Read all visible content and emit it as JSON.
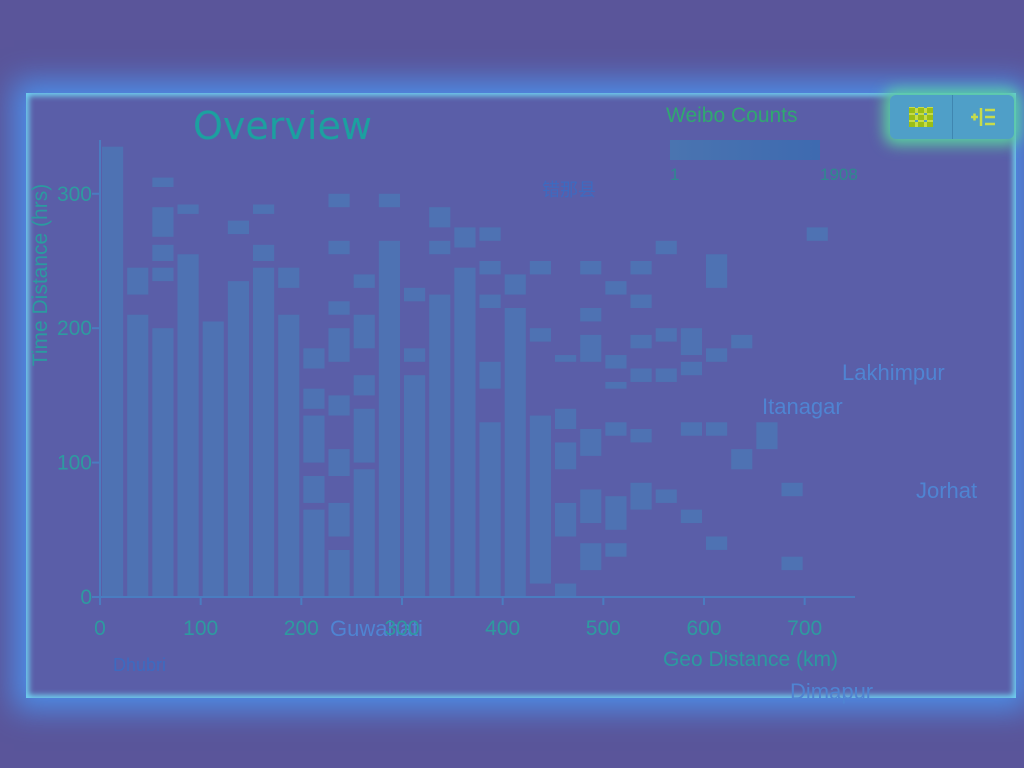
{
  "toolbar": {
    "items": [
      {
        "icon": "grid-icon",
        "label": ""
      },
      {
        "icon": "indent-list-icon",
        "label": ""
      }
    ]
  },
  "legend": {
    "title": "Weibo Counts",
    "min_label": "1",
    "max_label": "1908",
    "color": "#4a74b0"
  },
  "map_labels": [
    "Lakhimpur",
    "Itanagar",
    "Jorhat",
    "Dimapur",
    "Guwahati",
    "Dhubri",
    "错那县"
  ],
  "chart_data": {
    "type": "heatmap",
    "title": "Overview",
    "xlabel": "Geo Distance (km)",
    "ylabel": "Time Distance (hrs)",
    "xlim": [
      0,
      750
    ],
    "ylim": [
      0,
      340
    ],
    "xticks": [
      "0",
      "100",
      "200",
      "300",
      "400",
      "500",
      "600",
      "700"
    ],
    "yticks": [
      "0",
      "100",
      "200",
      "300"
    ],
    "bin_width_km": 25,
    "columns": [
      {
        "x": 0,
        "segments": [
          [
            0,
            335
          ]
        ]
      },
      {
        "x": 25,
        "segments": [
          [
            0,
            210
          ],
          [
            225,
            245
          ]
        ]
      },
      {
        "x": 50,
        "segments": [
          [
            0,
            200
          ],
          [
            235,
            245
          ],
          [
            250,
            262
          ],
          [
            268,
            290
          ],
          [
            305,
            312
          ]
        ]
      },
      {
        "x": 75,
        "segments": [
          [
            0,
            255
          ],
          [
            285,
            292
          ]
        ]
      },
      {
        "x": 100,
        "segments": [
          [
            0,
            205
          ]
        ]
      },
      {
        "x": 125,
        "segments": [
          [
            0,
            235
          ],
          [
            270,
            280
          ]
        ]
      },
      {
        "x": 150,
        "segments": [
          [
            0,
            245
          ],
          [
            250,
            262
          ],
          [
            285,
            292
          ]
        ]
      },
      {
        "x": 175,
        "segments": [
          [
            0,
            210
          ],
          [
            230,
            245
          ]
        ]
      },
      {
        "x": 200,
        "segments": [
          [
            0,
            65
          ],
          [
            70,
            90
          ],
          [
            100,
            135
          ],
          [
            140,
            155
          ],
          [
            170,
            185
          ]
        ]
      },
      {
        "x": 225,
        "segments": [
          [
            0,
            35
          ],
          [
            45,
            70
          ],
          [
            90,
            110
          ],
          [
            135,
            150
          ],
          [
            175,
            200
          ],
          [
            210,
            220
          ],
          [
            255,
            265
          ],
          [
            290,
            300
          ]
        ]
      },
      {
        "x": 250,
        "segments": [
          [
            0,
            95
          ],
          [
            100,
            140
          ],
          [
            150,
            165
          ],
          [
            185,
            210
          ],
          [
            230,
            240
          ]
        ]
      },
      {
        "x": 275,
        "segments": [
          [
            0,
            265
          ],
          [
            290,
            300
          ]
        ]
      },
      {
        "x": 300,
        "segments": [
          [
            0,
            165
          ],
          [
            175,
            185
          ],
          [
            220,
            230
          ]
        ]
      },
      {
        "x": 325,
        "segments": [
          [
            0,
            225
          ],
          [
            255,
            265
          ],
          [
            275,
            290
          ]
        ]
      },
      {
        "x": 350,
        "segments": [
          [
            0,
            245
          ],
          [
            260,
            275
          ]
        ]
      },
      {
        "x": 375,
        "segments": [
          [
            0,
            130
          ],
          [
            155,
            175
          ],
          [
            215,
            225
          ],
          [
            240,
            250
          ],
          [
            265,
            275
          ]
        ]
      },
      {
        "x": 400,
        "segments": [
          [
            0,
            215
          ],
          [
            225,
            240
          ]
        ]
      },
      {
        "x": 425,
        "segments": [
          [
            10,
            135
          ],
          [
            190,
            200
          ],
          [
            240,
            250
          ]
        ]
      },
      {
        "x": 450,
        "segments": [
          [
            0,
            10
          ],
          [
            45,
            70
          ],
          [
            95,
            115
          ],
          [
            125,
            140
          ],
          [
            175,
            180
          ]
        ]
      },
      {
        "x": 475,
        "segments": [
          [
            20,
            40
          ],
          [
            55,
            80
          ],
          [
            105,
            125
          ],
          [
            175,
            195
          ],
          [
            205,
            215
          ],
          [
            240,
            250
          ]
        ]
      },
      {
        "x": 500,
        "segments": [
          [
            30,
            40
          ],
          [
            50,
            75
          ],
          [
            120,
            130
          ],
          [
            155,
            160
          ],
          [
            170,
            180
          ],
          [
            225,
            235
          ]
        ]
      },
      {
        "x": 525,
        "segments": [
          [
            65,
            85
          ],
          [
            115,
            125
          ],
          [
            160,
            170
          ],
          [
            185,
            195
          ],
          [
            215,
            225
          ],
          [
            240,
            250
          ]
        ]
      },
      {
        "x": 550,
        "segments": [
          [
            70,
            80
          ],
          [
            160,
            170
          ],
          [
            190,
            200
          ],
          [
            255,
            265
          ]
        ]
      },
      {
        "x": 575,
        "segments": [
          [
            55,
            65
          ],
          [
            120,
            130
          ],
          [
            165,
            175
          ],
          [
            180,
            200
          ]
        ]
      },
      {
        "x": 600,
        "segments": [
          [
            35,
            45
          ],
          [
            120,
            130
          ],
          [
            175,
            185
          ],
          [
            230,
            255
          ]
        ]
      },
      {
        "x": 625,
        "segments": [
          [
            95,
            110
          ],
          [
            185,
            195
          ]
        ]
      },
      {
        "x": 650,
        "segments": [
          [
            110,
            130
          ]
        ]
      },
      {
        "x": 675,
        "segments": [
          [
            20,
            30
          ],
          [
            75,
            85
          ]
        ]
      },
      {
        "x": 700,
        "segments": [
          [
            265,
            275
          ]
        ]
      }
    ]
  }
}
